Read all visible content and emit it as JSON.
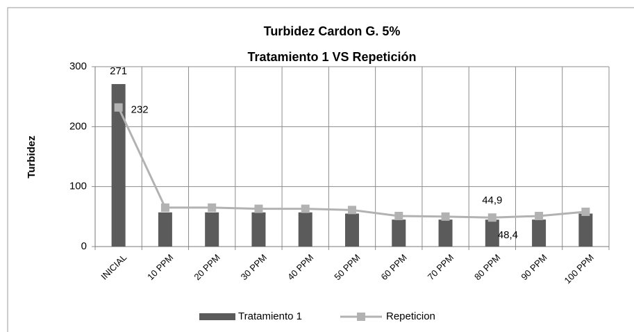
{
  "chart_data": {
    "type": "bar-line",
    "title": "Turbidez Cardon G. 5%",
    "subtitle": "Tratamiento 1 VS Repetición",
    "y_label": "Turbidez",
    "categories": [
      "INICIAL",
      "10 PPM",
      "20 PPM",
      "30 PPM",
      "40 PPM",
      "50 PPM",
      "60 PPM",
      "70 PPM",
      "80 PPM",
      "90 PPM",
      "100 PPM"
    ],
    "series": [
      {
        "name": "Tratamiento 1",
        "kind": "bar",
        "color": "#5b5b5b",
        "values": [
          271,
          57,
          57,
          57,
          57,
          55,
          45,
          45,
          44.9,
          45,
          55
        ],
        "value_labels": [
          "271",
          null,
          null,
          null,
          null,
          null,
          null,
          null,
          "44,9",
          null,
          null
        ]
      },
      {
        "name": "Repeticion",
        "kind": "line",
        "color": "#b2b2b2",
        "values": [
          232,
          65,
          65,
          63,
          63,
          61,
          51,
          50,
          48.4,
          51,
          58
        ],
        "value_labels": [
          "232",
          null,
          null,
          null,
          null,
          null,
          null,
          null,
          "48,4",
          null,
          null
        ]
      }
    ],
    "ylim": [
      0,
      300
    ],
    "yticks": [
      0,
      100,
      200,
      300
    ],
    "grid": true,
    "legend": "bottom"
  }
}
